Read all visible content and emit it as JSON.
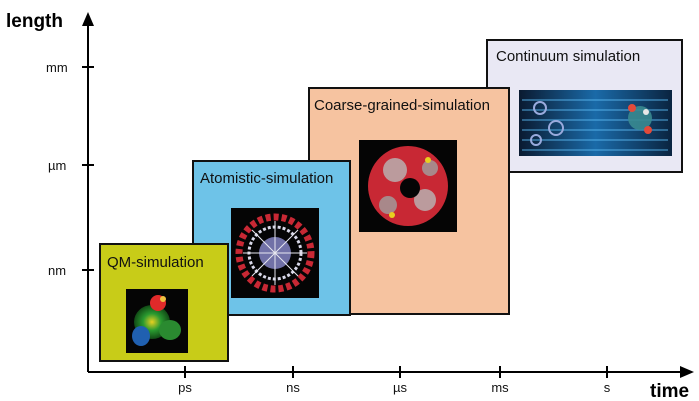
{
  "axes": {
    "y_title": "length",
    "x_title": "time",
    "y_ticks": [
      "nm",
      "µm",
      "mm"
    ],
    "x_ticks": [
      "ps",
      "ns",
      "µs",
      "ms",
      "s"
    ]
  },
  "panels": [
    {
      "label": "QM-simulation",
      "color": "#c8cc18",
      "image": "molecule-orbital-icon"
    },
    {
      "label": "Atomistic-simulation",
      "color": "#6ec3e8",
      "image": "atom-cluster-icon"
    },
    {
      "label": "Coarse-grained-simulation",
      "color": "#f6c3a0",
      "image": "coarse-grained-ring-icon"
    },
    {
      "label": "Continuum simulation",
      "color": "#e9e8f4",
      "image": "continuum-field-icon"
    }
  ]
}
